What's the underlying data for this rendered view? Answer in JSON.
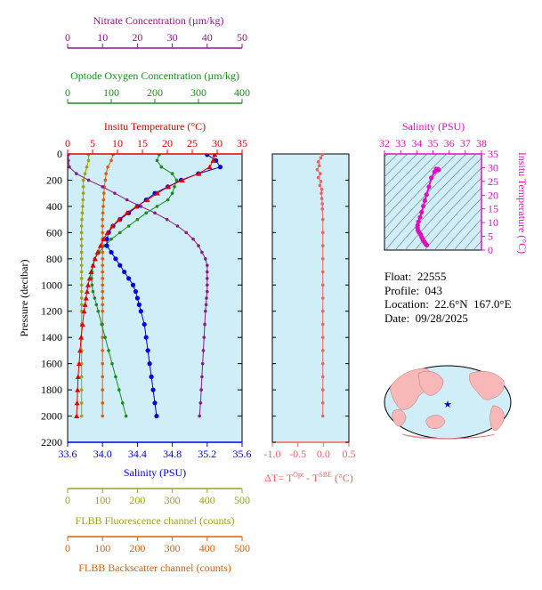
{
  "info": {
    "float": "Float:  22555",
    "profile": "Profile:  043",
    "location": "Location:  22.6°N  167.0°E",
    "date": "Date:  09/28/2025"
  },
  "colors": {
    "nitrate": "#8B1A8B",
    "oxygen": "#1A8C1A",
    "temperature": "#E00000",
    "salinity": "#0000DD",
    "fluorescence": "#A0A020",
    "backscatter": "#D86010",
    "delta": "#F06060",
    "ts": "#E010C0",
    "panel_bg": "#CFEEF7"
  },
  "chart_data": [
    {
      "type": "line",
      "title": "",
      "ylabel": "Pressure (decibar)",
      "ylim": [
        2200,
        0
      ],
      "yticks": [
        "0",
        "200",
        "400",
        "600",
        "800",
        "1000",
        "1200",
        "1400",
        "1600",
        "1800",
        "2000",
        "2200"
      ],
      "grid": false,
      "axes": {
        "nitrate": {
          "label": "Nitrate Concentration (µm/kg)",
          "range": [
            0,
            50
          ],
          "ticks": [
            "0",
            "10",
            "20",
            "30",
            "40",
            "50"
          ]
        },
        "oxygen": {
          "label": "Optode Oxygen Concentration (µm/kg)",
          "range": [
            0,
            400
          ],
          "ticks": [
            "0",
            "100",
            "200",
            "300",
            "400"
          ]
        },
        "temperature": {
          "label": "Insitu Temperature (°C)",
          "range": [
            0,
            35
          ],
          "ticks": [
            "0",
            "5",
            "10",
            "15",
            "20",
            "25",
            "30",
            "35"
          ]
        },
        "salinity": {
          "label": "Salinity (PSU)",
          "range": [
            33.6,
            35.6
          ],
          "ticks": [
            "33.6",
            "34.0",
            "34.4",
            "34.8",
            "35.2",
            "35.6"
          ]
        },
        "fluorescence": {
          "label": "FLBB Fluorescence channel (counts)",
          "range": [
            0,
            500
          ],
          "ticks": [
            "0",
            "100",
            "200",
            "300",
            "400",
            "500"
          ]
        },
        "backscatter": {
          "label": "FLBB Backscatter channel (counts)",
          "range": [
            0,
            500
          ],
          "ticks": [
            "0",
            "100",
            "200",
            "300",
            "400",
            "500"
          ]
        }
      },
      "pressure": [
        5,
        50,
        100,
        150,
        200,
        250,
        300,
        350,
        400,
        450,
        500,
        550,
        600,
        650,
        700,
        750,
        800,
        850,
        900,
        950,
        1000,
        1050,
        1100,
        1150,
        1200,
        1300,
        1400,
        1500,
        1600,
        1700,
        1800,
        1900,
        2000
      ],
      "series": [
        {
          "key": "temperature",
          "values": [
            29.5,
            29.2,
            28.5,
            26.3,
            23.0,
            20.2,
            18.0,
            16.0,
            13.8,
            11.9,
            10.3,
            9.0,
            8.0,
            7.2,
            6.6,
            6.0,
            5.5,
            5.1,
            4.7,
            4.4,
            4.1,
            3.9,
            3.7,
            3.5,
            3.3,
            3.0,
            2.7,
            2.5,
            2.3,
            2.1,
            2.0,
            1.9,
            1.8
          ]
        },
        {
          "key": "salinity",
          "values": [
            35.2,
            35.3,
            35.35,
            35.1,
            34.9,
            34.75,
            34.6,
            34.5,
            34.4,
            34.3,
            34.2,
            34.12,
            34.07,
            34.05,
            34.05,
            34.1,
            34.15,
            34.2,
            34.25,
            34.3,
            34.35,
            34.38,
            34.4,
            34.42,
            34.44,
            34.48,
            34.5,
            34.52,
            34.54,
            34.56,
            34.58,
            34.6,
            34.62
          ]
        },
        {
          "key": "oxygen",
          "values": [
            210,
            205,
            215,
            240,
            250,
            245,
            240,
            230,
            205,
            180,
            160,
            140,
            120,
            100,
            85,
            72,
            62,
            58,
            56,
            55,
            56,
            58,
            62,
            66,
            70,
            78,
            86,
            94,
            102,
            110,
            118,
            126,
            134
          ]
        },
        {
          "key": "nitrate",
          "values": [
            0.2,
            0.2,
            0.5,
            2.5,
            6.0,
            10.0,
            13.5,
            17.0,
            21.0,
            25.0,
            28.5,
            31.5,
            34.0,
            36.0,
            37.5,
            38.5,
            39.5,
            40.0,
            40.0,
            40.0,
            40.0,
            40.0,
            39.8,
            39.7,
            39.5,
            39.3,
            39.1,
            38.9,
            38.7,
            38.5,
            38.3,
            38.1,
            37.8
          ]
        },
        {
          "key": "fluorescence",
          "values": [
            60,
            60,
            55,
            50,
            45,
            45,
            45,
            44,
            43,
            42,
            41,
            40,
            40,
            40,
            40,
            40,
            40,
            40,
            40,
            40,
            40,
            40,
            40,
            40,
            40,
            40,
            40,
            40,
            40,
            40,
            40,
            40,
            40
          ]
        },
        {
          "key": "backscatter",
          "values": [
            130,
            125,
            115,
            110,
            108,
            105,
            104,
            103,
            102,
            101,
            100,
            100,
            100,
            100,
            100,
            100,
            100,
            100,
            100,
            100,
            100,
            100,
            100,
            100,
            100,
            100,
            100,
            100,
            100,
            100,
            100,
            100,
            100
          ]
        }
      ]
    },
    {
      "type": "line",
      "title": "",
      "xlabel": "ΔT= T^Opt - T^SBE (°C)",
      "xlim": [
        -1.0,
        0.5
      ],
      "xticks": [
        "-1.0",
        "-0.5",
        "0.0",
        "0.5"
      ],
      "ylim": [
        2200,
        0
      ],
      "pressure": [
        5,
        30,
        60,
        90,
        120,
        150,
        180,
        210,
        240,
        270,
        300,
        340,
        380,
        420,
        500,
        600,
        700,
        800,
        900,
        1000,
        1100,
        1200,
        1300,
        1400,
        1500,
        1600,
        1700,
        1800,
        1900,
        2000
      ],
      "values": [
        -0.02,
        -0.05,
        -0.1,
        -0.08,
        -0.12,
        -0.06,
        -0.1,
        -0.05,
        -0.07,
        -0.03,
        -0.04,
        -0.03,
        -0.02,
        -0.02,
        -0.01,
        -0.01,
        -0.01,
        -0.01,
        -0.01,
        -0.01,
        -0.01,
        -0.01,
        -0.01,
        -0.01,
        -0.01,
        -0.01,
        -0.01,
        -0.01,
        -0.01,
        -0.01
      ]
    },
    {
      "type": "scatter",
      "title": "",
      "xlabel": "Salinity (PSU)",
      "ylabel": "Insitu Temperature (°C)",
      "xlim": [
        32,
        38
      ],
      "ylim": [
        0,
        35
      ],
      "xticks": [
        "32",
        "33",
        "34",
        "35",
        "36",
        "37",
        "38"
      ],
      "yticks": [
        "0",
        "5",
        "10",
        "15",
        "20",
        "25",
        "30",
        "35"
      ],
      "x": [
        34.62,
        34.58,
        34.54,
        34.5,
        34.46,
        34.42,
        34.38,
        34.35,
        34.3,
        34.25,
        34.2,
        34.12,
        34.07,
        34.05,
        34.05,
        34.1,
        34.2,
        34.3,
        34.4,
        34.5,
        34.6,
        34.75,
        34.9,
        35.1,
        35.35,
        35.3,
        35.2
      ],
      "y": [
        1.8,
        2.0,
        2.3,
        2.7,
        3.0,
        3.3,
        3.7,
        4.1,
        4.7,
        5.5,
        6.0,
        6.6,
        7.2,
        8.0,
        9.0,
        10.3,
        11.9,
        13.8,
        16.0,
        18.0,
        20.2,
        23.0,
        26.3,
        28.5,
        29.2,
        29.5,
        29.5
      ]
    }
  ]
}
